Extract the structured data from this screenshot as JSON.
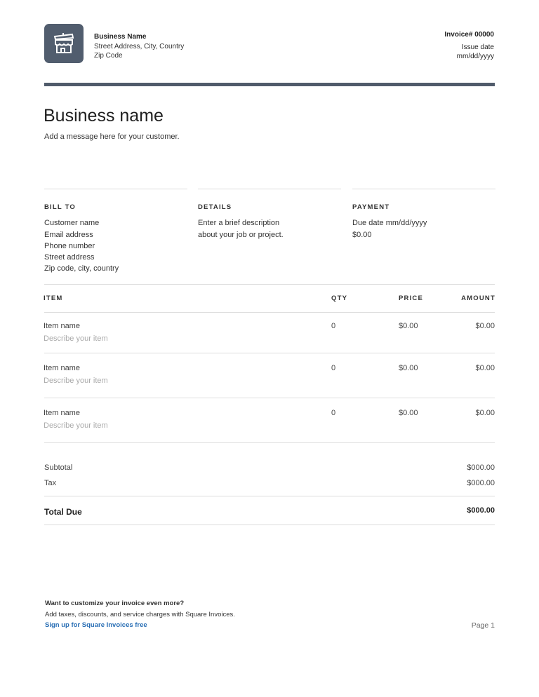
{
  "header": {
    "logo_icon": "storefront-icon",
    "business_name": "Business Name",
    "address": "Street Address, City, Country",
    "zip": "Zip Code",
    "invoice_number": "Invoice# 00000",
    "issue_date_label": "Issue date",
    "issue_date": "mm/dd/yyyy",
    "accent_color": "#505b6b"
  },
  "title": "Business name",
  "message": "Add a message here for your customer.",
  "bill_to": {
    "label": "BILL TO",
    "lines": [
      "Customer name",
      "Email address",
      "Phone number",
      "Street address",
      "Zip code, city, country"
    ]
  },
  "details": {
    "label": "DETAILS",
    "lines": [
      "Enter a brief description",
      "about your job or project."
    ]
  },
  "payment": {
    "label": "PAYMENT",
    "lines": [
      "Due date mm/dd/yyyy",
      "$0.00"
    ]
  },
  "table": {
    "headers": {
      "item": "ITEM",
      "qty": "QTY",
      "price": "PRICE",
      "amount": "AMOUNT"
    },
    "rows": [
      {
        "name": "Item name",
        "desc": "Describe your item",
        "qty": "0",
        "price": "$0.00",
        "amount": "$0.00"
      },
      {
        "name": "Item name",
        "desc": "Describe your item",
        "qty": "0",
        "price": "$0.00",
        "amount": "$0.00"
      },
      {
        "name": "Item name",
        "desc": "Describe your item",
        "qty": "0",
        "price": "$0.00",
        "amount": "$0.00"
      }
    ]
  },
  "totals": {
    "subtotal_label": "Subtotal",
    "subtotal": "$000.00",
    "tax_label": "Tax",
    "tax": "$000.00",
    "total_label": "Total Due",
    "total": "$000.00"
  },
  "footer": {
    "heading": "Want to customize your invoice even more?",
    "text": "Add taxes, discounts, and service charges with Square Invoices.",
    "link": "Sign up for Square Invoices free",
    "link_color": "#2a6fb5",
    "page": "Page 1"
  }
}
